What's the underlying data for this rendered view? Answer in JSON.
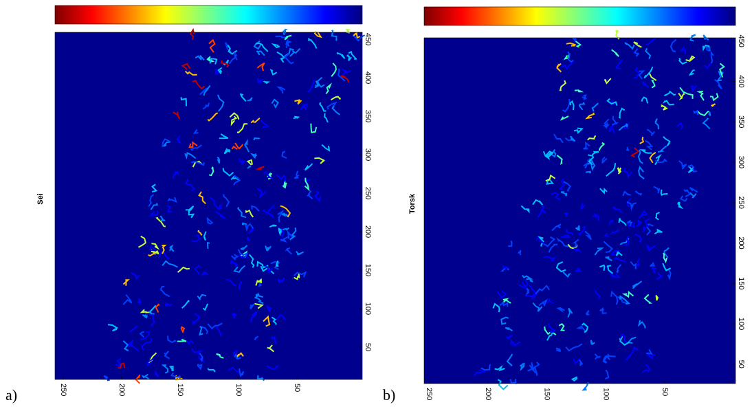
{
  "panels": [
    {
      "label": "a)",
      "ylabel": "Sei",
      "xlim": [
        -6,
        257
      ],
      "ylim": [
        8,
        459
      ],
      "xticks": [
        250,
        200,
        150,
        100,
        50
      ],
      "yticks": [
        50,
        100,
        150,
        200,
        250,
        300,
        350,
        400,
        450
      ]
    },
    {
      "label": "b)",
      "ylabel": "Torsk",
      "xlim": [
        -10,
        254
      ],
      "ylim": [
        26,
        454
      ],
      "xticks": [
        250,
        200,
        150,
        100,
        50
      ],
      "yticks": [
        50,
        100,
        150,
        200,
        250,
        300,
        350,
        400,
        450
      ]
    }
  ]
}
